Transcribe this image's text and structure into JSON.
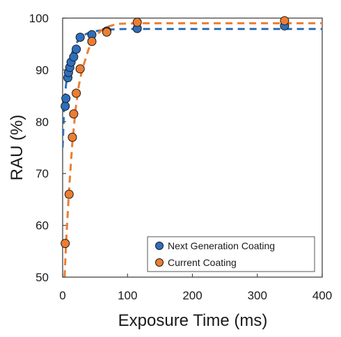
{
  "chart_data": {
    "type": "scatter",
    "xlabel": "Exposure Time (ms)",
    "ylabel": "RAU (%)",
    "xlim": [
      0,
      400
    ],
    "ylim": [
      50,
      100
    ],
    "xticks": [
      "0",
      "100",
      "200",
      "300",
      "400"
    ],
    "yticks": [
      "50",
      "60",
      "70",
      "80",
      "90",
      "100"
    ],
    "grid": false,
    "legend_position": "bottom-right",
    "series": [
      {
        "name": "Next Generation Coating",
        "color": "#2e6fbd",
        "points": [
          {
            "x": 4,
            "y": 83
          },
          {
            "x": 5,
            "y": 84.5
          },
          {
            "x": 8,
            "y": 88.5
          },
          {
            "x": 9,
            "y": 89.5
          },
          {
            "x": 11,
            "y": 90.5
          },
          {
            "x": 13,
            "y": 91.5
          },
          {
            "x": 17,
            "y": 92.5
          },
          {
            "x": 21,
            "y": 94
          },
          {
            "x": 27,
            "y": 96.3
          },
          {
            "x": 45,
            "y": 96.8
          },
          {
            "x": 68,
            "y": 97.5
          },
          {
            "x": 115,
            "y": 98
          },
          {
            "x": 342,
            "y": 98.5
          }
        ],
        "fit": [
          {
            "x": 0,
            "y": 75
          },
          {
            "x": 2,
            "y": 82
          },
          {
            "x": 5,
            "y": 87
          },
          {
            "x": 10,
            "y": 91
          },
          {
            "x": 15,
            "y": 93.5
          },
          {
            "x": 20,
            "y": 95
          },
          {
            "x": 30,
            "y": 96.6
          },
          {
            "x": 45,
            "y": 97.4
          },
          {
            "x": 70,
            "y": 97.8
          },
          {
            "x": 100,
            "y": 97.9
          },
          {
            "x": 400,
            "y": 97.9
          }
        ]
      },
      {
        "name": "Current Coating",
        "color": "#ed7d31",
        "points": [
          {
            "x": 4,
            "y": 56.5
          },
          {
            "x": 10,
            "y": 66
          },
          {
            "x": 15,
            "y": 77
          },
          {
            "x": 17,
            "y": 81.5
          },
          {
            "x": 21,
            "y": 85.5
          },
          {
            "x": 27,
            "y": 90.2
          },
          {
            "x": 45,
            "y": 95.5
          },
          {
            "x": 68,
            "y": 97.3
          },
          {
            "x": 115,
            "y": 99.2
          },
          {
            "x": 342,
            "y": 99.5
          }
        ],
        "fit": [
          {
            "x": 3,
            "y": 50
          },
          {
            "x": 5,
            "y": 56
          },
          {
            "x": 10,
            "y": 67
          },
          {
            "x": 15,
            "y": 76
          },
          {
            "x": 20,
            "y": 82.5
          },
          {
            "x": 25,
            "y": 87
          },
          {
            "x": 30,
            "y": 90
          },
          {
            "x": 40,
            "y": 94
          },
          {
            "x": 50,
            "y": 96.5
          },
          {
            "x": 65,
            "y": 98.2
          },
          {
            "x": 85,
            "y": 98.9
          },
          {
            "x": 120,
            "y": 99
          },
          {
            "x": 400,
            "y": 99
          }
        ]
      }
    ]
  }
}
